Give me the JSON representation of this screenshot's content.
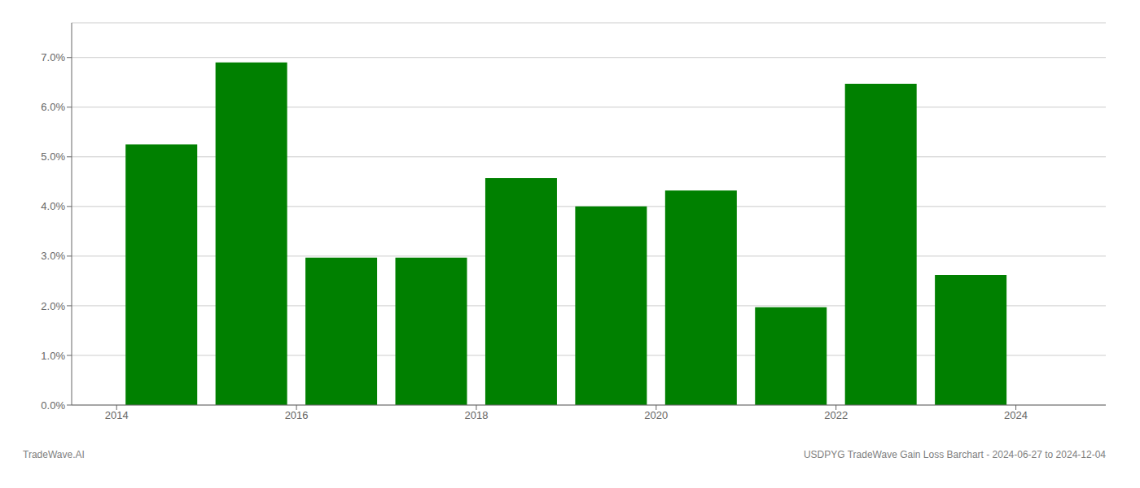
{
  "chart_data": {
    "type": "bar",
    "x": [
      2014,
      2015,
      2016,
      2017,
      2018,
      2019,
      2020,
      2021,
      2022,
      2023
    ],
    "values": [
      0.0525,
      0.069,
      0.0297,
      0.0297,
      0.0457,
      0.04,
      0.0432,
      0.0197,
      0.0647,
      0.0262
    ],
    "color": "#008000",
    "xlim": [
      2013.0,
      2024.5
    ],
    "xticks": [
      {
        "value": 2013.5,
        "label": "2014"
      },
      {
        "value": 2015.5,
        "label": "2016"
      },
      {
        "value": 2017.5,
        "label": "2018"
      },
      {
        "value": 2019.5,
        "label": "2020"
      },
      {
        "value": 2021.5,
        "label": "2022"
      },
      {
        "value": 2023.5,
        "label": "2024"
      }
    ],
    "ylim": [
      0.0,
      0.077
    ],
    "yticks": [
      {
        "value": 0.0,
        "label": "0.0%"
      },
      {
        "value": 0.01,
        "label": "1.0%"
      },
      {
        "value": 0.02,
        "label": "2.0%"
      },
      {
        "value": 0.03,
        "label": "3.0%"
      },
      {
        "value": 0.04,
        "label": "4.0%"
      },
      {
        "value": 0.05,
        "label": "5.0%"
      },
      {
        "value": 0.06,
        "label": "6.0%"
      },
      {
        "value": 0.07,
        "label": "7.0%"
      }
    ],
    "grid": true,
    "annotations": [
      "TradeWave.AI",
      "USDPYG TradeWave Gain Loss Barchart - 2024-06-27 to 2024-12-04"
    ]
  }
}
